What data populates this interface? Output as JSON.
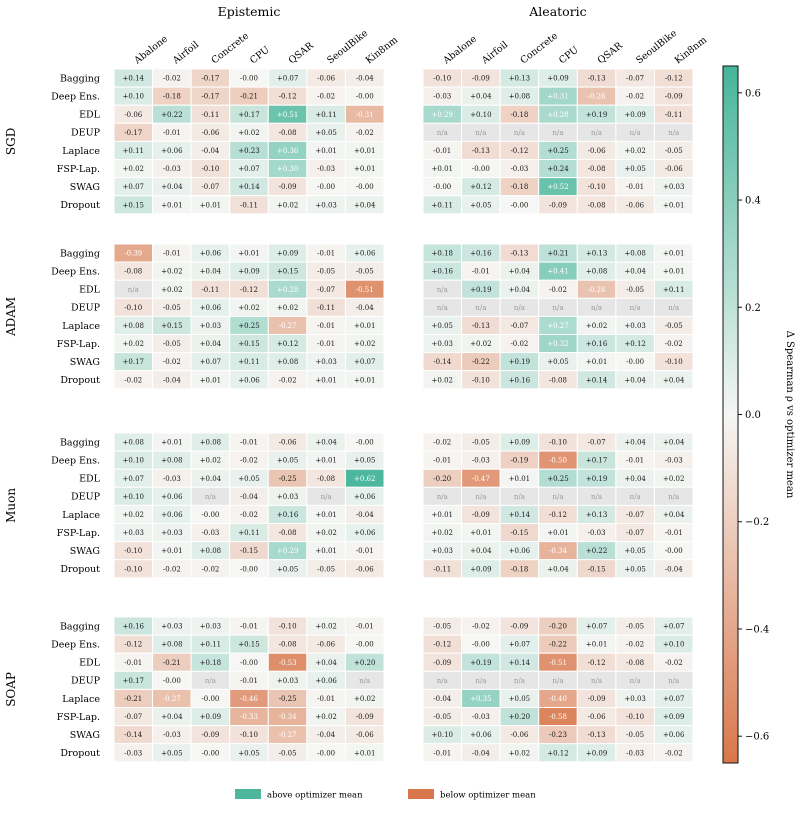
{
  "chart_data": {
    "type": "heatmap",
    "panel_titles": [
      "Epistemic",
      "Aleatoric"
    ],
    "columns": [
      "Abalone",
      "Airfoil",
      "Concrete",
      "CPU",
      "QSAR",
      "SeoulBike",
      "Kin8nm"
    ],
    "rows": [
      "Bagging",
      "Deep Ens.",
      "EDL",
      "DEUP",
      "Laplace",
      "FSP-Lap.",
      "SWAG",
      "Dropout"
    ],
    "optimizers": [
      "SGD",
      "ADAM",
      "Muon",
      "SOAP"
    ],
    "na_label": "n/a",
    "values": {
      "SGD": {
        "Epistemic": [
          [
            0.14,
            -0.02,
            -0.17,
            0.0,
            0.07,
            -0.06,
            -0.04
          ],
          [
            0.1,
            -0.18,
            -0.17,
            -0.21,
            -0.12,
            -0.02,
            -0.0
          ],
          [
            -0.06,
            0.22,
            -0.11,
            0.17,
            0.51,
            0.11,
            -0.31
          ],
          [
            -0.17,
            -0.01,
            -0.06,
            0.02,
            -0.08,
            0.05,
            -0.02
          ],
          [
            0.11,
            0.06,
            -0.04,
            0.23,
            0.36,
            0.01,
            0.01
          ],
          [
            0.02,
            -0.03,
            -0.1,
            0.07,
            0.3,
            -0.03,
            0.01
          ],
          [
            0.07,
            0.04,
            -0.07,
            0.14,
            -0.09,
            0.0,
            0.0
          ],
          [
            0.15,
            0.01,
            0.01,
            -0.11,
            0.02,
            0.03,
            0.04
          ]
        ],
        "Aleatoric": [
          [
            -0.1,
            -0.09,
            0.13,
            0.09,
            -0.13,
            -0.07,
            -0.12
          ],
          [
            -0.03,
            0.04,
            0.08,
            0.31,
            -0.26,
            -0.02,
            -0.09
          ],
          [
            0.29,
            0.1,
            -0.18,
            0.28,
            0.19,
            0.09,
            -0.11
          ],
          [
            null,
            null,
            null,
            null,
            null,
            null,
            null
          ],
          [
            -0.01,
            -0.13,
            -0.12,
            0.25,
            -0.06,
            0.02,
            -0.05
          ],
          [
            0.01,
            0.0,
            -0.03,
            0.24,
            -0.08,
            0.05,
            -0.06
          ],
          [
            0.0,
            0.12,
            -0.18,
            0.52,
            -0.1,
            -0.01,
            0.03
          ],
          [
            0.11,
            0.05,
            0.0,
            -0.09,
            -0.08,
            -0.06,
            0.01
          ]
        ]
      },
      "ADAM": {
        "Epistemic": [
          [
            -0.39,
            -0.01,
            0.06,
            0.01,
            0.09,
            -0.01,
            0.06
          ],
          [
            -0.08,
            0.02,
            0.04,
            0.09,
            0.15,
            -0.05,
            -0.05
          ],
          [
            null,
            0.02,
            -0.11,
            -0.12,
            0.28,
            -0.07,
            -0.51
          ],
          [
            -0.1,
            -0.05,
            0.06,
            0.02,
            0.02,
            -0.11,
            -0.04
          ],
          [
            0.08,
            0.15,
            0.03,
            0.25,
            -0.27,
            -0.01,
            0.01
          ],
          [
            0.02,
            -0.05,
            0.04,
            0.15,
            0.12,
            -0.01,
            0.02
          ],
          [
            0.17,
            -0.02,
            0.07,
            0.11,
            0.08,
            0.03,
            0.07
          ],
          [
            -0.02,
            -0.04,
            0.01,
            0.06,
            -0.02,
            0.01,
            0.01
          ]
        ],
        "Aleatoric": [
          [
            0.18,
            0.16,
            -0.13,
            0.21,
            0.13,
            0.08,
            0.01
          ],
          [
            0.16,
            -0.01,
            0.04,
            0.41,
            0.08,
            0.04,
            0.01
          ],
          [
            null,
            0.19,
            0.04,
            -0.02,
            -0.26,
            -0.05,
            0.11
          ],
          [
            null,
            null,
            null,
            null,
            null,
            null,
            null
          ],
          [
            0.05,
            -0.13,
            -0.07,
            0.27,
            0.02,
            0.03,
            -0.05
          ],
          [
            0.03,
            0.02,
            -0.02,
            0.32,
            0.16,
            0.12,
            -0.02
          ],
          [
            -0.14,
            -0.22,
            0.19,
            0.05,
            0.01,
            0.0,
            -0.1
          ],
          [
            0.02,
            -0.1,
            0.16,
            -0.08,
            0.14,
            0.04,
            0.04
          ]
        ]
      },
      "Muon": {
        "Epistemic": [
          [
            0.08,
            0.01,
            0.08,
            -0.01,
            -0.06,
            0.04,
            -0.0
          ],
          [
            0.1,
            0.08,
            0.02,
            -0.02,
            0.05,
            0.01,
            0.05
          ],
          [
            0.07,
            -0.03,
            0.04,
            0.05,
            -0.25,
            -0.08,
            0.62
          ],
          [
            0.1,
            0.06,
            null,
            -0.04,
            0.03,
            null,
            0.06
          ],
          [
            0.02,
            0.06,
            0.0,
            -0.02,
            0.16,
            0.01,
            -0.04
          ],
          [
            0.03,
            0.03,
            -0.03,
            0.11,
            -0.08,
            0.02,
            0.06
          ],
          [
            -0.1,
            0.01,
            0.08,
            -0.15,
            0.29,
            0.01,
            -0.01
          ],
          [
            -0.1,
            -0.02,
            -0.02,
            -0.0,
            0.05,
            -0.05,
            -0.06
          ]
        ],
        "Aleatoric": [
          [
            -0.02,
            -0.05,
            0.09,
            -0.1,
            -0.07,
            0.04,
            0.04
          ],
          [
            -0.01,
            -0.03,
            -0.19,
            -0.5,
            0.17,
            -0.01,
            -0.03
          ],
          [
            -0.2,
            -0.47,
            0.01,
            0.25,
            0.19,
            0.04,
            0.02
          ],
          [
            null,
            null,
            null,
            null,
            null,
            null,
            null
          ],
          [
            0.01,
            -0.09,
            0.14,
            -0.12,
            0.13,
            -0.07,
            0.04
          ],
          [
            0.02,
            0.01,
            -0.15,
            0.01,
            -0.03,
            -0.07,
            -0.01
          ],
          [
            0.03,
            0.04,
            0.06,
            -0.34,
            0.22,
            0.05,
            0.0
          ],
          [
            -0.11,
            0.09,
            -0.18,
            0.04,
            -0.15,
            0.05,
            -0.04
          ]
        ]
      },
      "SOAP": {
        "Epistemic": [
          [
            0.16,
            0.03,
            0.03,
            -0.01,
            -0.1,
            0.02,
            -0.01
          ],
          [
            -0.12,
            0.08,
            0.11,
            0.15,
            -0.08,
            -0.06,
            -0.0
          ],
          [
            -0.01,
            -0.21,
            0.18,
            0.0,
            -0.53,
            0.04,
            0.2
          ],
          [
            0.17,
            0.0,
            null,
            -0.01,
            0.03,
            0.06,
            null
          ],
          [
            -0.21,
            -0.27,
            0.0,
            -0.46,
            -0.25,
            -0.01,
            0.02
          ],
          [
            -0.07,
            0.04,
            0.09,
            -0.33,
            -0.34,
            0.02,
            -0.09
          ],
          [
            -0.14,
            -0.03,
            -0.09,
            -0.1,
            -0.27,
            -0.04,
            -0.06
          ],
          [
            -0.03,
            0.05,
            0.0,
            0.05,
            -0.05,
            0.0,
            0.01
          ]
        ],
        "Aleatoric": [
          [
            -0.05,
            -0.02,
            -0.09,
            -0.2,
            0.07,
            -0.05,
            0.07
          ],
          [
            -0.12,
            0.0,
            0.07,
            -0.22,
            0.01,
            -0.02,
            0.1
          ],
          [
            -0.09,
            0.19,
            0.14,
            -0.51,
            -0.12,
            -0.08,
            -0.02
          ],
          [
            null,
            null,
            null,
            null,
            null,
            null,
            null
          ],
          [
            -0.04,
            0.35,
            0.05,
            -0.4,
            -0.09,
            0.03,
            0.07
          ],
          [
            -0.05,
            -0.03,
            0.2,
            -0.58,
            -0.06,
            -0.1,
            0.09
          ],
          [
            0.1,
            0.06,
            -0.06,
            -0.23,
            -0.13,
            -0.05,
            0.06
          ],
          [
            -0.01,
            -0.04,
            0.02,
            0.12,
            0.09,
            -0.03,
            -0.02
          ]
        ]
      }
    },
    "colorbar": {
      "label": "Δ Spearman ρ vs optimizer mean",
      "range": [
        -0.65,
        0.65
      ],
      "ticks": [
        -0.6,
        -0.4,
        -0.2,
        0.0,
        0.2,
        0.4,
        0.6
      ],
      "tick_labels": [
        "−0.6",
        "−0.4",
        "−0.2",
        "0.0",
        "0.2",
        "0.4",
        "0.6"
      ]
    },
    "colors": {
      "positive": "#45b59a",
      "negative": "#d9764a",
      "neutral": "#f6f6f4",
      "na": "#e6e6e6"
    },
    "legend": [
      {
        "label": "above optimizer mean",
        "color": "#4db69c"
      },
      {
        "label": "below optimizer mean",
        "color": "#d8774b"
      }
    ]
  }
}
